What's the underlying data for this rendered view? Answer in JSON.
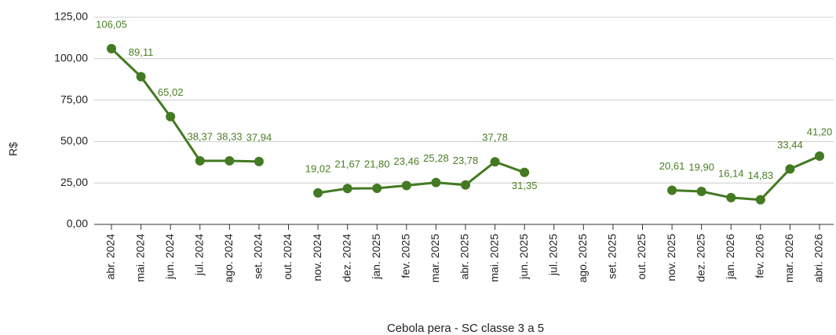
{
  "chart_data": {
    "type": "line",
    "x_label": "Cebola pera - SC classe 3 a 5",
    "y_label": "R$",
    "categories": [
      "abr. 2024",
      "mai. 2024",
      "jun. 2024",
      "jul. 2024",
      "ago. 2024",
      "set. 2024",
      "out. 2024",
      "nov. 2024",
      "dez. 2024",
      "jan. 2025",
      "fev. 2025",
      "mar. 2025",
      "abr. 2025",
      "mai. 2025",
      "jun. 2025",
      "jul. 2025",
      "ago. 2025",
      "set. 2025",
      "out. 2025",
      "nov. 2025",
      "dez. 2025",
      "jan. 2026",
      "fev. 2026",
      "mar. 2026",
      "abri. 2026"
    ],
    "series": [
      {
        "name": "Cebola pera - SC classe 3 a 5",
        "color": "#437a22",
        "values": [
          106.05,
          89.11,
          65.02,
          38.37,
          38.33,
          37.94,
          null,
          19.02,
          21.67,
          21.8,
          23.46,
          25.28,
          23.78,
          37.78,
          31.35,
          null,
          null,
          null,
          null,
          20.61,
          19.9,
          16.14,
          14.83,
          33.44,
          41.2
        ],
        "value_labels": [
          "106,05",
          "89,11",
          "65,02",
          "38,37",
          "38,33",
          "37,94",
          null,
          "19,02",
          "21,67",
          "21,80",
          "23,46",
          "25,28",
          "23,78",
          "37,78",
          "31,35",
          null,
          null,
          null,
          null,
          "20,61",
          "19,90",
          "16,14",
          "14,83",
          "33,44",
          "41,20"
        ]
      }
    ],
    "ylim": [
      0,
      125
    ],
    "yticks": [
      {
        "value": 0,
        "label": "0,00"
      },
      {
        "value": 25,
        "label": "25,00"
      },
      {
        "value": 50,
        "label": "50,00"
      },
      {
        "value": 75,
        "label": "75,00"
      },
      {
        "value": 100,
        "label": "100,00"
      },
      {
        "value": 125,
        "label": "125,00"
      }
    ],
    "grid": true
  }
}
